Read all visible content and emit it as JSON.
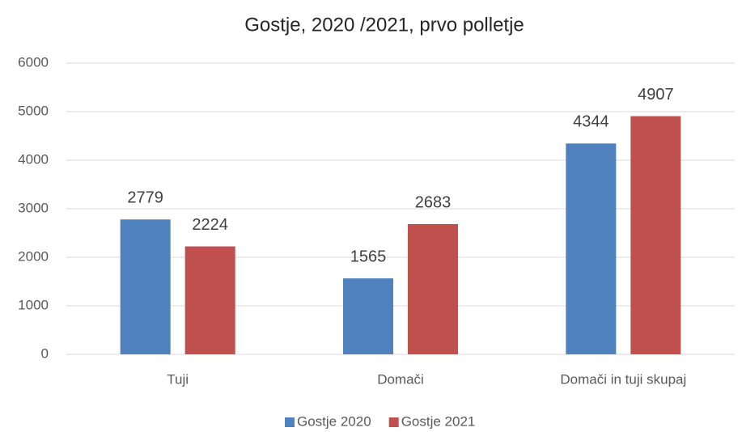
{
  "chart_data": {
    "type": "bar",
    "title": "Gostje, 2020 /2021, prvo polletje",
    "categories": [
      "Tuji",
      "Domači",
      "Domači in tuji skupaj"
    ],
    "series": [
      {
        "name": "Gostje 2020",
        "color": "#4f81bd",
        "values": [
          2779,
          1565,
          4344
        ]
      },
      {
        "name": "Gostje 2021",
        "color": "#c0504d",
        "values": [
          2224,
          2683,
          4907
        ]
      }
    ],
    "ylim": [
      0,
      6000
    ],
    "yticks": [
      0,
      1000,
      2000,
      3000,
      4000,
      5000,
      6000
    ],
    "grid": true,
    "legend": "bottom"
  }
}
